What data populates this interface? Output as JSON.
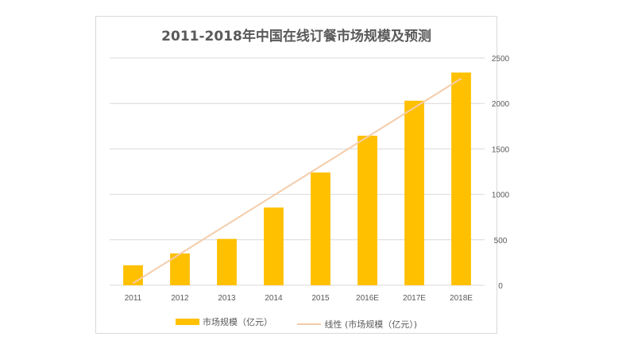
{
  "chart_data": {
    "type": "bar",
    "title": "2011-2018年中国在线订餐市场规模及预测",
    "categories": [
      "2011",
      "2012",
      "2013",
      "2014",
      "2015",
      "2016E",
      "2017E",
      "2018E"
    ],
    "series": [
      {
        "name": "市场规模（亿元）",
        "type": "bar",
        "values": [
          220,
          350,
          510,
          855,
          1240,
          1645,
          2030,
          2340
        ]
      },
      {
        "name": "线性 (市场规模（亿元）)",
        "type": "linear-trendline"
      }
    ],
    "ylim": [
      0,
      2500
    ],
    "yticks": [
      "0",
      "500",
      "1000",
      "1500",
      "2000",
      "2500"
    ],
    "y_axis_side": "right",
    "grid": true,
    "legend": "bottom",
    "colors": {
      "bar": "#FFC000",
      "trend": "#F4CCAA",
      "grid": "#d9d9d9"
    }
  }
}
